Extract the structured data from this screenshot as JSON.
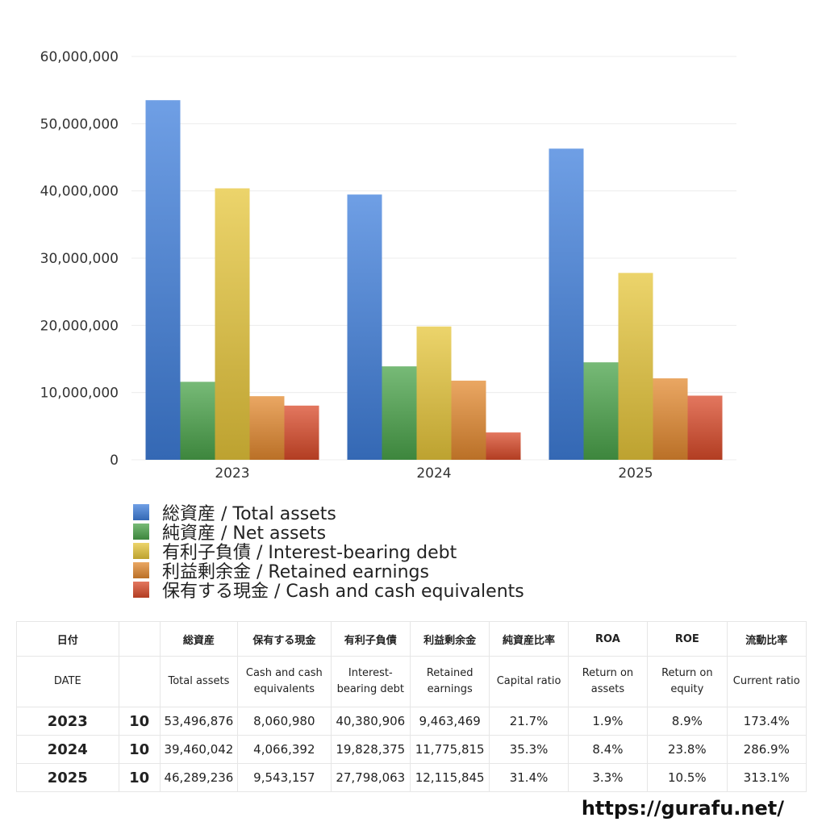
{
  "chart_data": {
    "type": "bar",
    "categories": [
      "2023",
      "2024",
      "2025"
    ],
    "ylim": [
      0,
      60000000
    ],
    "yticks": [
      "0",
      "10,000,000",
      "20,000,000",
      "30,000,000",
      "40,000,000",
      "50,000,000",
      "60,000,000"
    ],
    "ytick_values": [
      0,
      10000000,
      20000000,
      30000000,
      40000000,
      50000000,
      60000000
    ],
    "grid": true,
    "legend_position": "bottom-left",
    "series": [
      {
        "name": "総資産 / Total assets",
        "values": [
          53496876,
          39460042,
          46289236
        ],
        "color": "#3f7fdc"
      },
      {
        "name": "純資産 / Net assets",
        "values": [
          11600000,
          13900000,
          14500000
        ],
        "color": "#4aa34a"
      },
      {
        "name": "有利子負債 / Interest-bearing debt",
        "values": [
          40380906,
          19828375,
          27798063
        ],
        "color": "#e6c63a"
      },
      {
        "name": "利益剰余金 / Retained earnings",
        "values": [
          9463469,
          11775815,
          12115845
        ],
        "color": "#e3892f"
      },
      {
        "name": "保有する現金 /  Cash and cash equivalents",
        "values": [
          8060980,
          4066392,
          9543157
        ],
        "color": "#d94a2a"
      }
    ]
  },
  "table": {
    "header_ja": [
      "日付",
      "",
      "総資産",
      "保有する現金",
      "有利子負債",
      "利益剰余金",
      "純資産比率",
      "ROA",
      "ROE",
      "流動比率"
    ],
    "header_en": [
      "DATE",
      "",
      "Total assets",
      "Cash and cash equivalents",
      "Interest-bearing debt",
      "Retained earnings",
      "Capital ratio",
      "Return on assets",
      "Return on equity",
      "Current ratio"
    ],
    "rows": [
      [
        "2023",
        "10",
        "53,496,876",
        "8,060,980",
        "40,380,906",
        "9,463,469",
        "21.7%",
        "1.9%",
        "8.9%",
        "173.4%"
      ],
      [
        "2024",
        "10",
        "39,460,042",
        "4,066,392",
        "19,828,375",
        "11,775,815",
        "35.3%",
        "8.4%",
        "23.8%",
        "286.9%"
      ],
      [
        "2025",
        "10",
        "46,289,236",
        "9,543,157",
        "27,798,063",
        "12,115,845",
        "31.4%",
        "3.3%",
        "10.5%",
        "313.1%"
      ]
    ]
  },
  "footer": {
    "url": "https://gurafu.net/"
  }
}
